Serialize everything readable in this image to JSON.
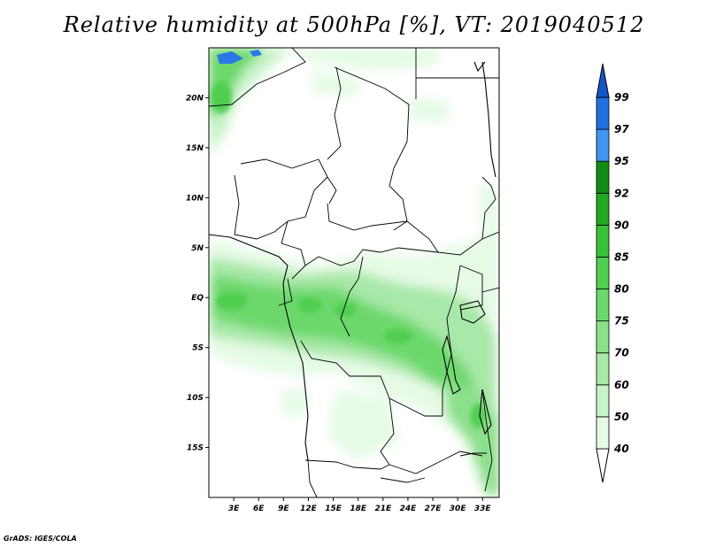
{
  "title": "Relative humidity at 500hPa [%], VT: 2019040512",
  "credit": "GrADS: IGES/COLA",
  "map": {
    "lat_range": [
      -20,
      25
    ],
    "lon_range": [
      0,
      35
    ],
    "lat_ticks": [
      {
        "value": 20,
        "label": "20N"
      },
      {
        "value": 15,
        "label": "15N"
      },
      {
        "value": 10,
        "label": "10N"
      },
      {
        "value": 5,
        "label": "5N"
      },
      {
        "value": 0,
        "label": "EQ"
      },
      {
        "value": -5,
        "label": "5S"
      },
      {
        "value": -10,
        "label": "10S"
      },
      {
        "value": -15,
        "label": "15S"
      }
    ],
    "lon_ticks": [
      {
        "value": 3,
        "label": "3E"
      },
      {
        "value": 6,
        "label": "6E"
      },
      {
        "value": 9,
        "label": "9E"
      },
      {
        "value": 12,
        "label": "12E"
      },
      {
        "value": 15,
        "label": "15E"
      },
      {
        "value": 18,
        "label": "18E"
      },
      {
        "value": 21,
        "label": "21E"
      },
      {
        "value": 24,
        "label": "24E"
      },
      {
        "value": 27,
        "label": "27E"
      },
      {
        "value": 30,
        "label": "30E"
      },
      {
        "value": 33,
        "label": "33E"
      }
    ]
  },
  "colorbar": {
    "levels": [
      "40",
      "50",
      "60",
      "70",
      "75",
      "80",
      "85",
      "90",
      "92",
      "95",
      "97",
      "99"
    ],
    "colors": [
      "#ffffff",
      "#e6fae6",
      "#c8f2c8",
      "#a8e8a8",
      "#8ce08c",
      "#6cd86c",
      "#50ce50",
      "#38c238",
      "#20aa20",
      "#128c12",
      "#4096f0",
      "#2070e0",
      "#1456c8"
    ]
  },
  "colors": {
    "coast": "#000000",
    "water": "#2a78e8"
  }
}
